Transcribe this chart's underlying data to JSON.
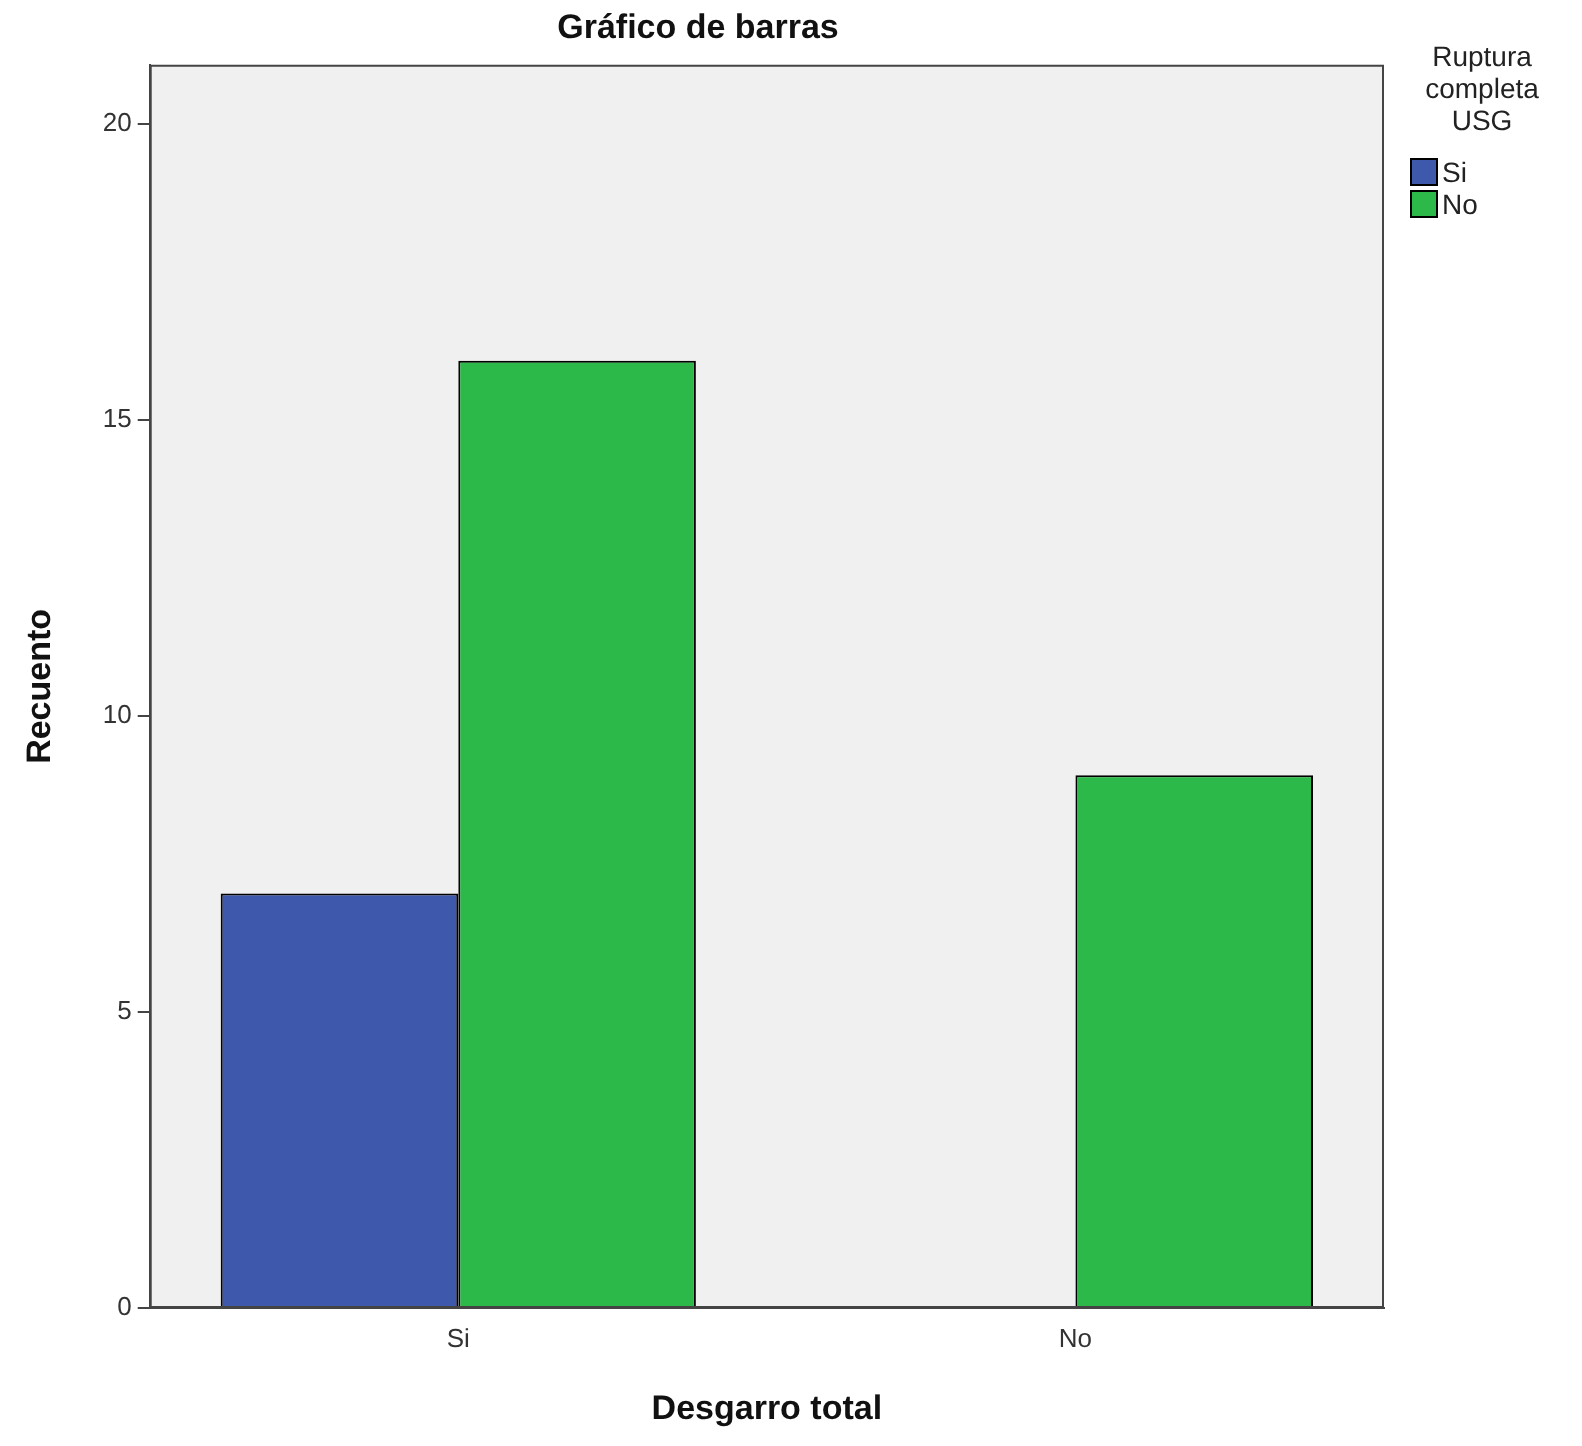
{
  "chart_data": {
    "type": "bar",
    "title": "Gráfico de barras",
    "xlabel": "Desgarro total",
    "ylabel": "Recuento",
    "legend_title": "Ruptura completa USG",
    "categories": [
      "Si",
      "No"
    ],
    "series": [
      {
        "name": "Si",
        "color": "#3e58ac",
        "values": [
          7,
          null
        ]
      },
      {
        "name": "No",
        "color": "#2db84a",
        "values": [
          16,
          9
        ]
      }
    ],
    "ylim": [
      0,
      21
    ],
    "yticks": [
      0,
      5,
      10,
      15,
      20
    ],
    "legend": "top right"
  }
}
